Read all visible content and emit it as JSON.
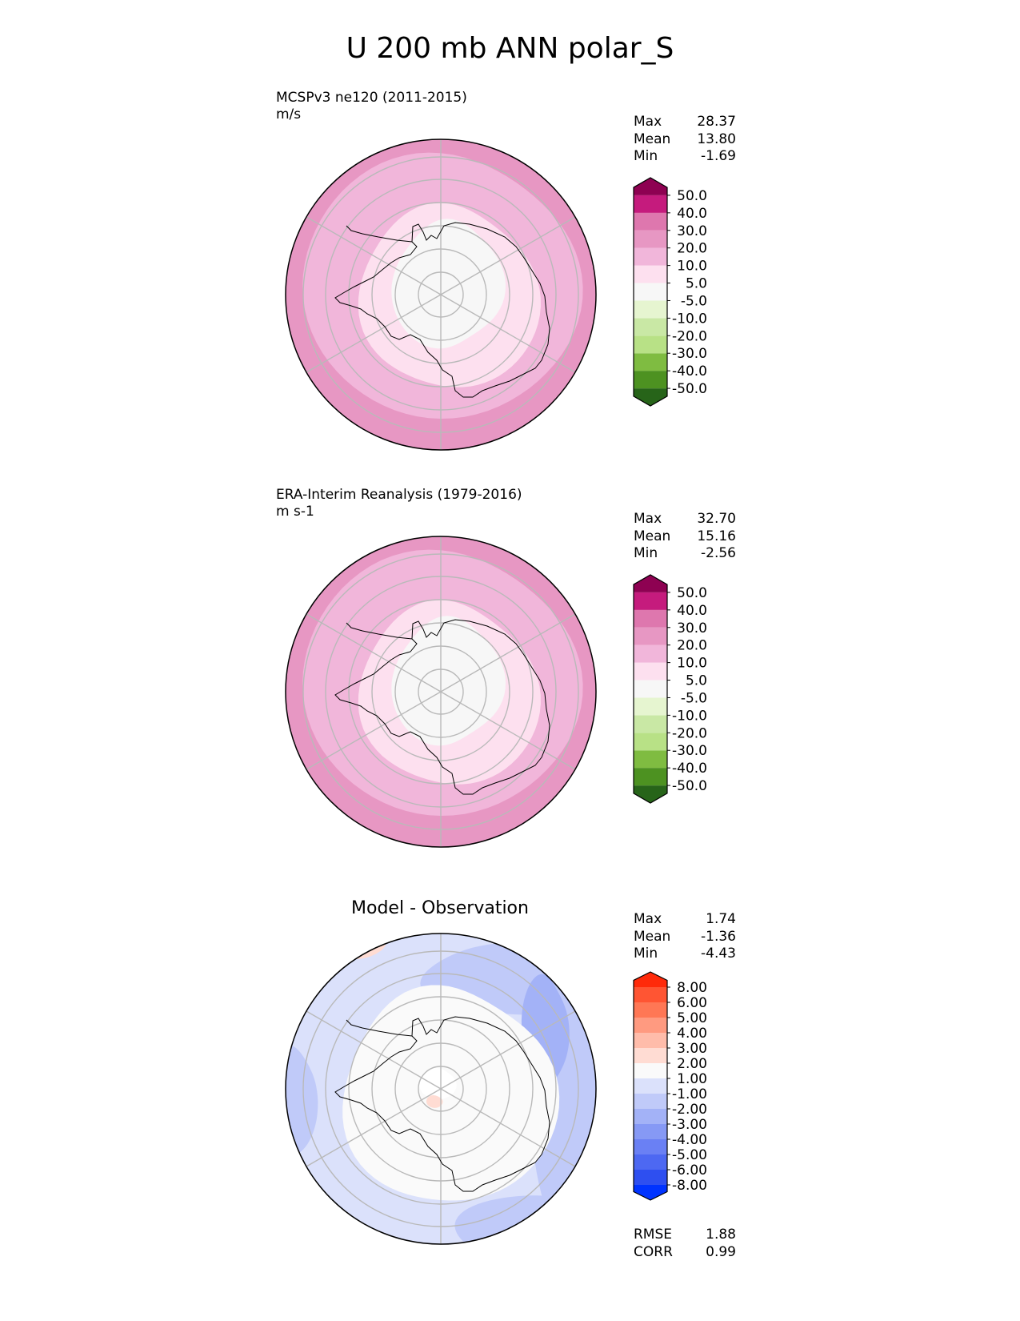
{
  "figure": {
    "title": "U 200 mb ANN polar_S"
  },
  "chart_data": [
    {
      "type": "heatmap",
      "projection": "south-polar-stereographic",
      "title": "MCSPv3 ne120 (2011-2015)",
      "units": "m/s",
      "stats": [
        {
          "label": "Max",
          "value": "28.37"
        },
        {
          "label": "Mean",
          "value": "13.80"
        },
        {
          "label": "Min",
          "value": "-1.69"
        }
      ],
      "colorbar": {
        "extend": "both",
        "tick_labels": [
          "50.0",
          "40.0",
          "30.0",
          "20.0",
          "10.0",
          "5.0",
          "-5.0",
          "-10.0",
          "-20.0",
          "-30.0",
          "-40.0",
          "-50.0"
        ],
        "colors": [
          "#8e0152",
          "#c51b7d",
          "#de77ae",
          "#e797c3",
          "#f1b6da",
          "#fde0ef",
          "#f7f7f7",
          "#e6f5d0",
          "#c9e8a5",
          "#b8e186",
          "#7fbc41",
          "#4d9221",
          "#276419"
        ]
      },
      "field_levels_outer_to_inner": [
        "#e797c3",
        "#f1b6da",
        "#fde0ef",
        "#f7f7f7"
      ],
      "grid": true
    },
    {
      "type": "heatmap",
      "projection": "south-polar-stereographic",
      "title": "ERA-Interim Reanalysis (1979-2016)",
      "units": "m s-1",
      "stats": [
        {
          "label": "Max",
          "value": "32.70"
        },
        {
          "label": "Mean",
          "value": "15.16"
        },
        {
          "label": "Min",
          "value": "-2.56"
        }
      ],
      "colorbar": {
        "extend": "both",
        "tick_labels": [
          "50.0",
          "40.0",
          "30.0",
          "20.0",
          "10.0",
          "5.0",
          "-5.0",
          "-10.0",
          "-20.0",
          "-30.0",
          "-40.0",
          "-50.0"
        ],
        "colors": [
          "#8e0152",
          "#c51b7d",
          "#de77ae",
          "#e797c3",
          "#f1b6da",
          "#fde0ef",
          "#f7f7f7",
          "#e6f5d0",
          "#c9e8a5",
          "#b8e186",
          "#7fbc41",
          "#4d9221",
          "#276419"
        ]
      },
      "field_levels_outer_to_inner": [
        "#e797c3",
        "#f1b6da",
        "#fde0ef",
        "#f7f7f7"
      ],
      "grid": true
    },
    {
      "type": "heatmap",
      "projection": "south-polar-stereographic",
      "title": "Model - Observation",
      "stats": [
        {
          "label": "Max",
          "value": "1.74"
        },
        {
          "label": "Mean",
          "value": "-1.36"
        },
        {
          "label": "Min",
          "value": "-4.43"
        }
      ],
      "metrics": [
        {
          "label": "RMSE",
          "value": "1.88"
        },
        {
          "label": "CORR",
          "value": "0.99"
        }
      ],
      "colorbar": {
        "extend": "both",
        "tick_labels": [
          "8.00",
          "6.00",
          "5.00",
          "4.00",
          "3.00",
          "2.00",
          "1.00",
          "-1.00",
          "-2.00",
          "-3.00",
          "-4.00",
          "-5.00",
          "-6.00",
          "-8.00"
        ],
        "colors": [
          "#ff2a0a",
          "#ff5533",
          "#ff7755",
          "#ff9a80",
          "#ffbcaa",
          "#ffdcd3",
          "#fafafa",
          "#dbe1fb",
          "#c0caf9",
          "#a3b2f7",
          "#8699f5",
          "#6a80f4",
          "#4d68f2",
          "#2e4ff0",
          "#0033ff"
        ]
      },
      "field_levels": [
        "#fafafa",
        "#dbe1fb",
        "#c0caf9",
        "#a3b2f7",
        "#ffdcd3"
      ],
      "grid": true
    }
  ]
}
